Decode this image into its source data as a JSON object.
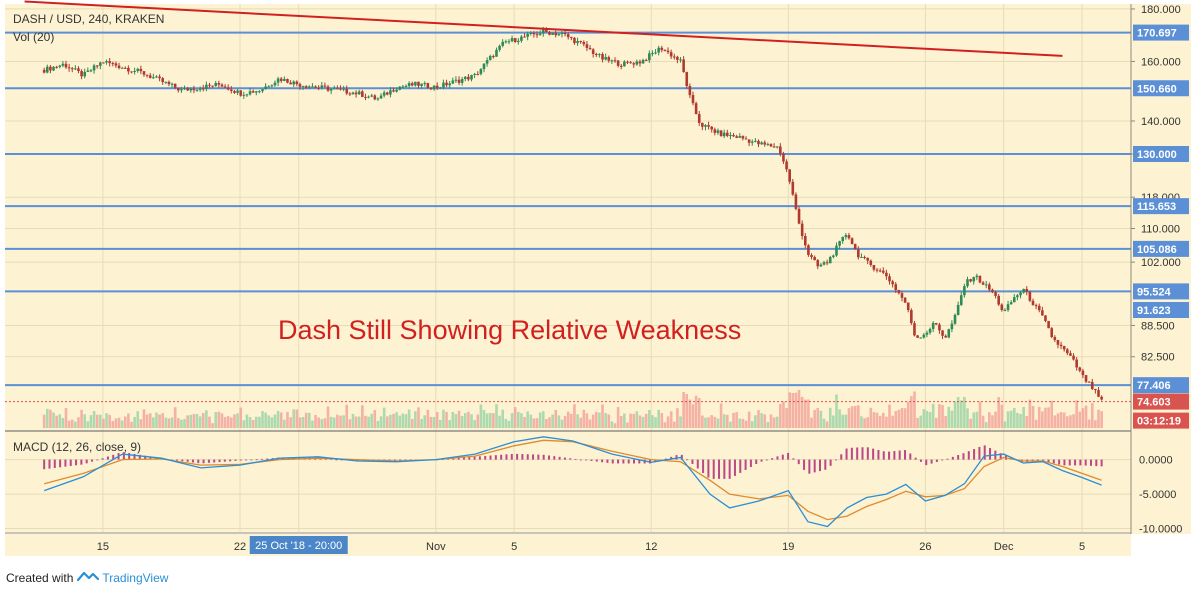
{
  "header": {
    "symbol": "DASH / USD, 240, KRAKEN",
    "volume_label": "Vol (20)",
    "macd_label": "MACD (12, 26, close, 9)",
    "annotation": "Dash Still Showing Relative Weakness"
  },
  "footer": {
    "created_with": "Created with",
    "brand": "TradingView"
  },
  "colors": {
    "background": "#fdf3d2",
    "grid": "#e7dcb8",
    "up": "#2e8b57",
    "down": "#b03a2e",
    "level_line": "#5b8fd6",
    "trend_line": "#d21f1f",
    "macd_line": "#2a8fd6",
    "signal_line": "#e08a2c",
    "hist": "#b0287a",
    "current_price_tag": "#d9534f",
    "annotation": "#d21f1f"
  },
  "chart_data": {
    "type": "candlestick",
    "price_axis": {
      "ticks": [
        "180.000",
        "160.000",
        "140.000",
        "130.000",
        "118.000",
        "110.000",
        "102.000",
        "88.500",
        "82.500"
      ],
      "ylim": [
        70,
        182
      ],
      "scale": "log"
    },
    "horizontal_levels": [
      {
        "label": "170.697",
        "value": 170.697
      },
      {
        "label": "150.660",
        "value": 150.66
      },
      {
        "label": "130.000",
        "value": 130.0
      },
      {
        "label": "115.653",
        "value": 115.653
      },
      {
        "label": "105.086",
        "value": 105.086
      },
      {
        "label": "95.524",
        "value": 95.524
      },
      {
        "label": "77.406",
        "value": 77.406
      }
    ],
    "price_tags": [
      {
        "label": "91.623",
        "value": 91.623
      },
      {
        "label": "74.603",
        "value": 74.603,
        "role": "current"
      }
    ],
    "countdown": "03:12:19",
    "trend_line": {
      "start_day": 11,
      "start_value": 183,
      "end_day": 64,
      "end_value": 162
    },
    "x_axis": {
      "labels": [
        {
          "label": "15",
          "day": 15
        },
        {
          "label": "22",
          "day": 22
        },
        {
          "label": "25 Oct '18 - 20:00",
          "day": 25,
          "highlight": true
        },
        {
          "label": "Nov",
          "day": 32
        },
        {
          "label": "5",
          "day": 36
        },
        {
          "label": "12",
          "day": 43
        },
        {
          "label": "19",
          "day": 50
        },
        {
          "label": "26",
          "day": 57
        },
        {
          "label": "Dec",
          "day": 61
        },
        {
          "label": "5",
          "day": 65
        }
      ]
    },
    "macd_axis": {
      "ticks": [
        "0.0000",
        "-5.0000",
        "-10.0000"
      ],
      "ylim": [
        -10.5,
        4
      ]
    },
    "price_path": [
      [
        12.0,
        157
      ],
      [
        13.0,
        159
      ],
      [
        14.0,
        155
      ],
      [
        15.0,
        160
      ],
      [
        16.0,
        158
      ],
      [
        17.0,
        156
      ],
      [
        18.0,
        153
      ],
      [
        19.0,
        150
      ],
      [
        20.0,
        151
      ],
      [
        21.0,
        152
      ],
      [
        22.0,
        149
      ],
      [
        23.0,
        150
      ],
      [
        24.0,
        154
      ],
      [
        25.0,
        152
      ],
      [
        26.0,
        151
      ],
      [
        27.0,
        150
      ],
      [
        28.0,
        149
      ],
      [
        29.0,
        147
      ],
      [
        30.0,
        151
      ],
      [
        31.0,
        152
      ],
      [
        32.0,
        151
      ],
      [
        33.0,
        153
      ],
      [
        34.0,
        155
      ],
      [
        35.5,
        167
      ],
      [
        36.5,
        169
      ],
      [
        37.5,
        171
      ],
      [
        38.5,
        170
      ],
      [
        39.5,
        166
      ],
      [
        40.5,
        161
      ],
      [
        41.5,
        159
      ],
      [
        42.5,
        160
      ],
      [
        43.5,
        165
      ],
      [
        44.5,
        160
      ],
      [
        45.0,
        147
      ],
      [
        45.5,
        139
      ],
      [
        46.5,
        136
      ],
      [
        47.5,
        135
      ],
      [
        48.5,
        133
      ],
      [
        49.5,
        132
      ],
      [
        50.0,
        124
      ],
      [
        50.5,
        112
      ],
      [
        51.0,
        104
      ],
      [
        51.5,
        101
      ],
      [
        52.0,
        102
      ],
      [
        53.0,
        109
      ],
      [
        53.5,
        104
      ],
      [
        54.0,
        102
      ],
      [
        55.0,
        99
      ],
      [
        55.5,
        96
      ],
      [
        56.0,
        93
      ],
      [
        56.5,
        86
      ],
      [
        57.0,
        87
      ],
      [
        57.5,
        89
      ],
      [
        58.0,
        86
      ],
      [
        58.5,
        90
      ],
      [
        59.0,
        97
      ],
      [
        59.5,
        99
      ],
      [
        60.0,
        97
      ],
      [
        60.5,
        95
      ],
      [
        61.0,
        91
      ],
      [
        61.5,
        94
      ],
      [
        62.0,
        96
      ],
      [
        62.5,
        93
      ],
      [
        63.0,
        90
      ],
      [
        63.5,
        86
      ],
      [
        64.0,
        84
      ],
      [
        64.5,
        82
      ],
      [
        65.0,
        79
      ],
      [
        65.5,
        77
      ],
      [
        66.0,
        74.6
      ]
    ],
    "macd_path": [
      [
        12.0,
        -4.5
      ],
      [
        14.0,
        -2.5
      ],
      [
        16.0,
        0.8
      ],
      [
        18.0,
        0.2
      ],
      [
        20.0,
        -1.2
      ],
      [
        22.0,
        -0.8
      ],
      [
        24.0,
        0.2
      ],
      [
        26.0,
        0.4
      ],
      [
        28.0,
        -0.2
      ],
      [
        30.0,
        -0.3
      ],
      [
        32.0,
        0.0
      ],
      [
        34.0,
        0.8
      ],
      [
        36.0,
        2.6
      ],
      [
        37.5,
        3.3
      ],
      [
        39.0,
        2.7
      ],
      [
        41.0,
        0.8
      ],
      [
        43.0,
        -0.4
      ],
      [
        44.5,
        0.3
      ],
      [
        46.0,
        -5.0
      ],
      [
        47.0,
        -7.0
      ],
      [
        48.5,
        -6.0
      ],
      [
        50.0,
        -4.5
      ],
      [
        51.0,
        -9.0
      ],
      [
        52.0,
        -9.7
      ],
      [
        53.0,
        -7.0
      ],
      [
        54.0,
        -5.5
      ],
      [
        55.0,
        -5.0
      ],
      [
        56.0,
        -3.6
      ],
      [
        57.0,
        -6.0
      ],
      [
        58.0,
        -5.2
      ],
      [
        59.0,
        -3.5
      ],
      [
        60.0,
        0.5
      ],
      [
        61.0,
        0.8
      ],
      [
        62.0,
        -0.5
      ],
      [
        63.0,
        -0.3
      ],
      [
        64.0,
        -1.6
      ],
      [
        65.0,
        -2.6
      ],
      [
        66.0,
        -3.7
      ]
    ],
    "signal_path": [
      [
        12.0,
        -3.5
      ],
      [
        14.0,
        -2.0
      ],
      [
        16.0,
        0.0
      ],
      [
        18.0,
        0.1
      ],
      [
        20.0,
        -0.8
      ],
      [
        22.0,
        -0.7
      ],
      [
        24.0,
        0.0
      ],
      [
        26.0,
        0.2
      ],
      [
        28.0,
        0.0
      ],
      [
        30.0,
        -0.2
      ],
      [
        32.0,
        0.0
      ],
      [
        34.0,
        0.5
      ],
      [
        36.0,
        2.0
      ],
      [
        37.5,
        2.8
      ],
      [
        39.0,
        2.6
      ],
      [
        41.0,
        1.2
      ],
      [
        43.0,
        0.0
      ],
      [
        44.5,
        -0.3
      ],
      [
        46.0,
        -3.0
      ],
      [
        47.0,
        -5.0
      ],
      [
        48.5,
        -5.7
      ],
      [
        50.0,
        -5.2
      ],
      [
        51.0,
        -7.5
      ],
      [
        52.0,
        -8.7
      ],
      [
        53.0,
        -8.2
      ],
      [
        54.0,
        -6.8
      ],
      [
        55.0,
        -5.8
      ],
      [
        56.0,
        -4.6
      ],
      [
        57.0,
        -5.4
      ],
      [
        58.0,
        -5.2
      ],
      [
        59.0,
        -4.2
      ],
      [
        60.0,
        -1.0
      ],
      [
        61.0,
        0.3
      ],
      [
        62.0,
        -0.2
      ],
      [
        63.0,
        -0.2
      ],
      [
        64.0,
        -1.0
      ],
      [
        65.0,
        -2.0
      ],
      [
        66.0,
        -3.0
      ]
    ]
  }
}
